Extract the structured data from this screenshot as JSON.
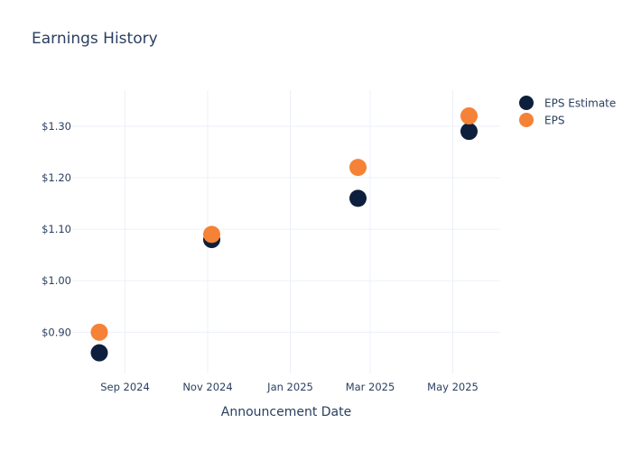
{
  "chart_data": {
    "type": "scatter",
    "title": "Earnings History",
    "xlabel": "Announcement Date",
    "ylabel": "",
    "x_ticks": [
      "Sep 2024",
      "Nov 2024",
      "Jan 2025",
      "Mar 2025",
      "May 2025"
    ],
    "y_ticks": [
      "$0.90",
      "$1.00",
      "$1.10",
      "$1.20",
      "$1.30"
    ],
    "xlim": [
      "2024-07-24",
      "2025-06-05"
    ],
    "ylim": [
      0.82,
      1.37
    ],
    "x": [
      "2024-08-13",
      "2024-11-04",
      "2025-02-20",
      "2025-05-13"
    ],
    "series": [
      {
        "name": "EPS Estimate",
        "color": "#0d1f3c",
        "values": [
          0.86,
          1.08,
          1.16,
          1.29
        ]
      },
      {
        "name": "EPS",
        "color": "#f58236",
        "values": [
          0.9,
          1.09,
          1.22,
          1.32
        ]
      }
    ],
    "grid": true,
    "legend_position": "top-right"
  }
}
